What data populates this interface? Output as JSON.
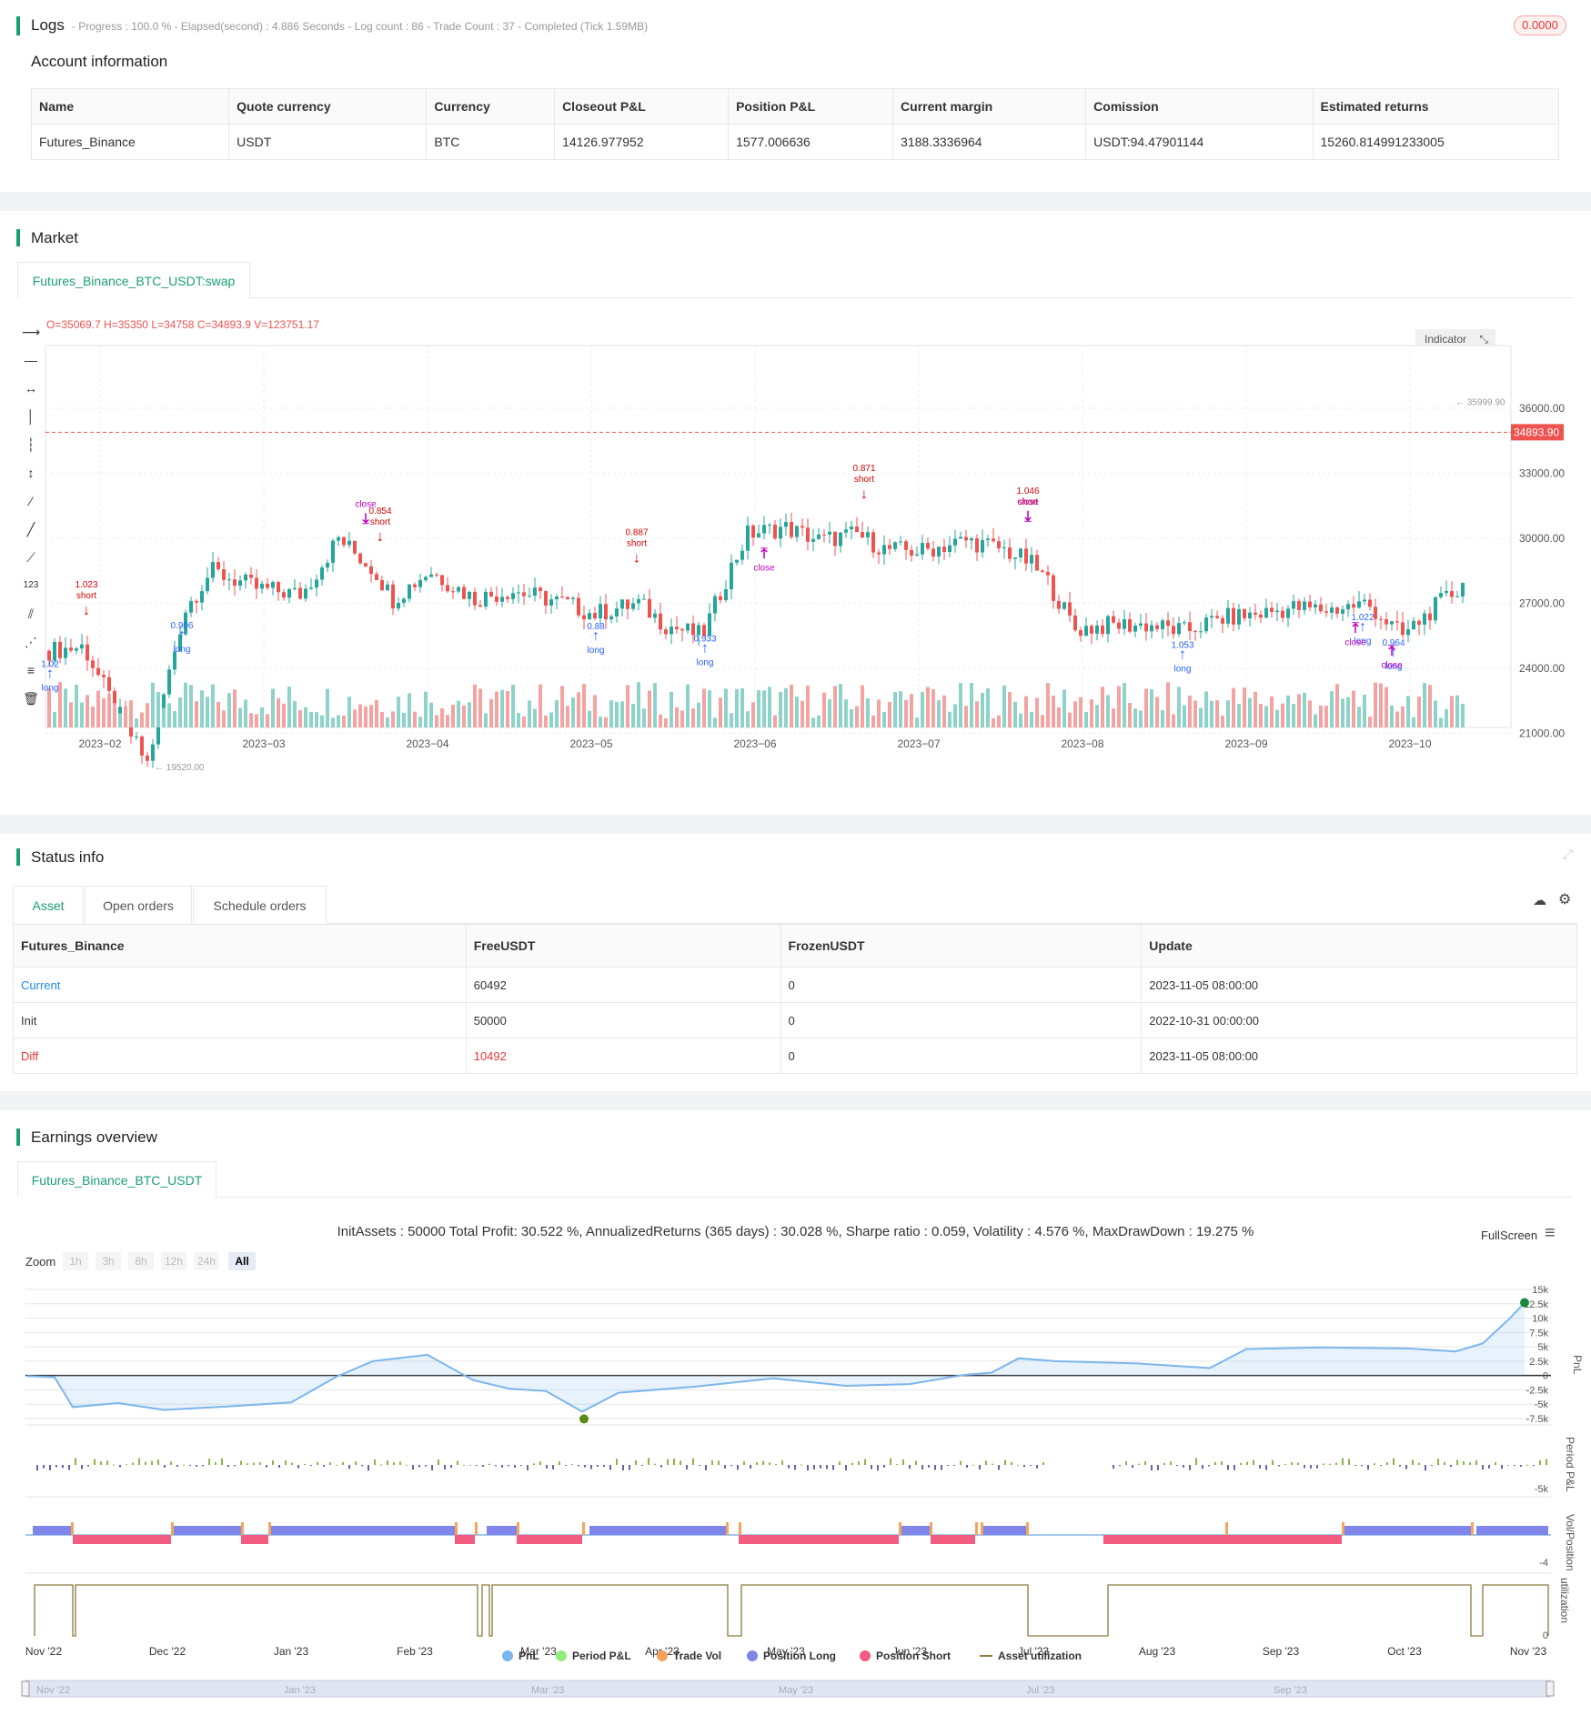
{
  "logs": {
    "title": "Logs",
    "progress_text": "- Progress : 100.0 % - Elapsed(second) : 4.886  Seconds - Log count : 86 - Trade Count : 37 - Completed (Tick 1.59MB)",
    "badge_value": "0.0000"
  },
  "account": {
    "title": "Account information",
    "headers": [
      "Name",
      "Quote currency",
      "Currency",
      "Closeout P&L",
      "Position P&L",
      "Current margin",
      "Comission",
      "Estimated returns"
    ],
    "row": [
      "Futures_Binance",
      "USDT",
      "BTC",
      "14126.977952",
      "1577.006636",
      "3188.3336964",
      "USDT:94.47901144",
      "15260.814991233005"
    ]
  },
  "market": {
    "title": "Market",
    "tab_label": "Futures_Binance_BTC_USDT:swap",
    "ohlc_text": "O=35069.7 H=35350 L=34758 C=34893.9 V=123751.17",
    "indicator_label": "Indicator",
    "last_price": "34893.90",
    "max_label": "35999.90",
    "min_label": "19520.00",
    "y_ticks": [
      "36000.00",
      "33000.00",
      "30000.00",
      "27000.00",
      "24000.00",
      "21000.00"
    ],
    "x_ticks": [
      "2023−02",
      "2023−03",
      "2023−04",
      "2023−05",
      "2023−06",
      "2023−07",
      "2023−08",
      "2023−09",
      "2023−10"
    ],
    "colors": {
      "up": "#26a69a",
      "down": "#ef5350",
      "long": "#2962ff",
      "short": "#d50000",
      "close": "#c000c0"
    },
    "signals": [
      {
        "label": "long",
        "value": "1.02"
      },
      {
        "label": "short",
        "value": "1.023"
      },
      {
        "label": "long",
        "value": "0.906"
      },
      {
        "label": "close",
        "value": ""
      },
      {
        "label": "short",
        "value": "0.854"
      },
      {
        "label": "long",
        "value": "0.88"
      },
      {
        "label": "short",
        "value": "0.887"
      },
      {
        "label": "long",
        "value": "0.933"
      },
      {
        "label": "close",
        "value": ""
      },
      {
        "label": "short",
        "value": "0.871"
      },
      {
        "label": "short",
        "value": "1.046"
      },
      {
        "label": "close",
        "value": ""
      },
      {
        "label": "long",
        "value": "1.053"
      },
      {
        "label": "long",
        "value": "1.022"
      },
      {
        "label": "close",
        "value": ""
      },
      {
        "label": "long",
        "value": "0.964"
      },
      {
        "label": "close",
        "value": ""
      }
    ]
  },
  "status": {
    "title": "Status info",
    "tabs": [
      "Asset",
      "Open orders",
      "Schedule orders"
    ],
    "headers": [
      "Futures_Binance",
      "FreeUSDT",
      "FrozenUSDT",
      "Update"
    ],
    "rows": [
      {
        "name": "Current",
        "free": "60492",
        "frozen": "0",
        "update": "2023-11-05 08:00:00"
      },
      {
        "name": "Init",
        "free": "50000",
        "frozen": "0",
        "update": "2022-10-31 00:00:00"
      },
      {
        "name": "Diff",
        "free": "10492",
        "frozen": "0",
        "update": "2023-11-05 08:00:00"
      }
    ]
  },
  "earnings": {
    "title": "Earnings overview",
    "tab_label": "Futures_Binance_BTC_USDT",
    "summary": "InitAssets : 50000 Total Profit: 30.522 %, AnnualizedReturns (365 days) : 30.028 %, Sharpe ratio : 0.059, Volatility : 4.576 %, MaxDrawDown : 19.275 %",
    "fullscreen_label": "FullScreen",
    "zoom_label": "Zoom",
    "zoom_buttons": [
      "1h",
      "3h",
      "8h",
      "12h",
      "24h",
      "All"
    ],
    "pnl_ticks": [
      "15k",
      "12.5k",
      "10k",
      "7.5k",
      "5k",
      "2.5k",
      "0",
      "-2.5k",
      "-5k",
      "-7.5k"
    ],
    "period_ticks": [
      "-5k"
    ],
    "vol_ticks": [
      "-4"
    ],
    "util_ticks": [
      "0"
    ],
    "axis_titles": [
      "PnL",
      "Period P&L",
      "Vol/Position",
      "utilization"
    ],
    "x_ticks": [
      "Nov '22",
      "Dec '22",
      "Jan '23",
      "Feb '23",
      "Mar '23",
      "Apr '23",
      "May '23",
      "Jun '23",
      "Jul '23",
      "Aug '23",
      "Sep '23",
      "Oct '23",
      "Nov '23"
    ],
    "navigator_ticks": [
      "Nov '22",
      "Jan '23",
      "Mar '23",
      "May '23",
      "Jul '23",
      "Sep '23"
    ],
    "legend": [
      {
        "name": "PnL",
        "color": "#7cb5ec"
      },
      {
        "name": "Period P&L",
        "color": "#90ed7d"
      },
      {
        "name": "Trade Vol",
        "color": "#f7a35c"
      },
      {
        "name": "Position Long",
        "color": "#8085e9"
      },
      {
        "name": "Position Short",
        "color": "#f15c80"
      },
      {
        "name": "Asset utilization",
        "color": "#8d7b3f"
      }
    ]
  }
}
